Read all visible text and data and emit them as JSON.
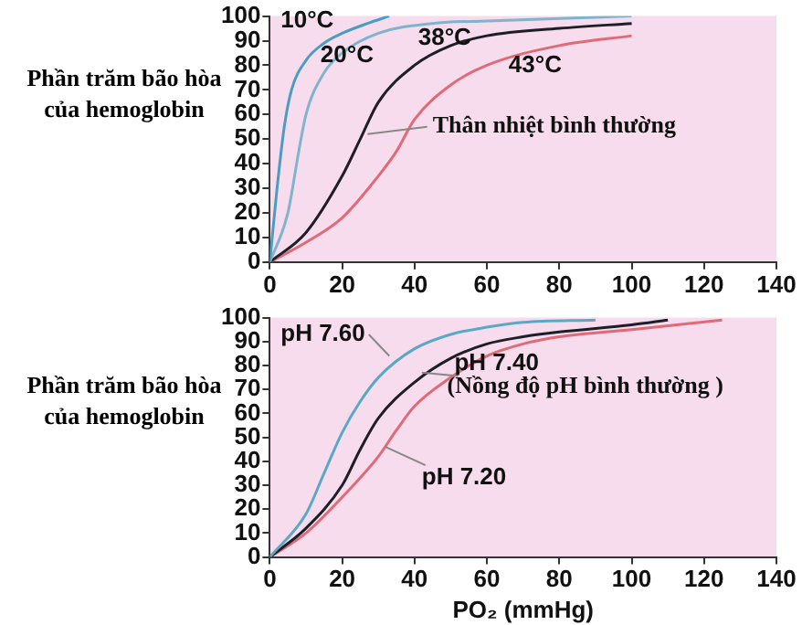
{
  "chart_data": [
    {
      "type": "line",
      "ylabel": "Phần trăm bão hòa của hemoglobin",
      "xlim": [
        0,
        140
      ],
      "xticks": [
        0,
        20,
        40,
        60,
        80,
        100,
        120,
        140
      ],
      "ylim": [
        0,
        100
      ],
      "yticks": [
        0,
        10,
        20,
        30,
        40,
        50,
        60,
        70,
        80,
        90,
        100
      ],
      "grid": false,
      "legend": false,
      "marker": "none",
      "line_style": "solid",
      "series": [
        {
          "name": "10°C",
          "color": "#4a9cc0",
          "x": [
            0,
            2,
            4,
            6,
            10,
            15,
            20,
            27,
            33
          ],
          "values": [
            0,
            30,
            55,
            70,
            82,
            89,
            93,
            97,
            100
          ]
        },
        {
          "name": "20°C",
          "color": "#7fb4cc",
          "x": [
            0,
            5,
            8,
            10,
            15,
            20,
            30,
            45,
            60,
            80,
            100
          ],
          "values": [
            0,
            20,
            45,
            60,
            77,
            85,
            93,
            97,
            98,
            99,
            100
          ]
        },
        {
          "name": "38°C",
          "color": "#1e1e28",
          "x": [
            0,
            10,
            20,
            25,
            30,
            40,
            50,
            60,
            80,
            100
          ],
          "values": [
            0,
            12,
            35,
            50,
            65,
            80,
            88,
            92,
            95,
            97
          ]
        },
        {
          "name": "43°C",
          "color": "#e06a78",
          "x": [
            0,
            10,
            20,
            30,
            35,
            40,
            50,
            60,
            80,
            100
          ],
          "values": [
            0,
            8,
            18,
            35,
            45,
            58,
            72,
            80,
            88,
            92
          ]
        }
      ],
      "annotations": [
        {
          "text": "Thân nhiệt bình thường",
          "x": 27,
          "y": 52
        }
      ]
    },
    {
      "type": "line",
      "ylabel": "Phần trăm bão hòa của hemoglobin",
      "xlabel": "PO₂ (mmHg)",
      "xlim": [
        0,
        140
      ],
      "xticks": [
        0,
        20,
        40,
        60,
        80,
        100,
        120,
        140
      ],
      "ylim": [
        0,
        100
      ],
      "yticks": [
        0,
        10,
        20,
        30,
        40,
        50,
        60,
        70,
        80,
        90,
        100
      ],
      "grid": false,
      "legend": false,
      "marker": "none",
      "line_style": "solid",
      "series": [
        {
          "name": "pH 7.60",
          "color": "#5aa8c4",
          "x": [
            0,
            10,
            15,
            20,
            25,
            30,
            40,
            50,
            60,
            70,
            90
          ],
          "values": [
            0,
            18,
            35,
            52,
            65,
            75,
            87,
            93,
            96,
            98,
            99
          ]
        },
        {
          "name": "pH 7.40",
          "color": "#1e1e28",
          "x": [
            0,
            10,
            20,
            25,
            30,
            40,
            50,
            60,
            70,
            80,
            100,
            110
          ],
          "values": [
            0,
            12,
            30,
            45,
            58,
            73,
            83,
            89,
            92,
            94,
            97,
            99
          ]
        },
        {
          "name": "pH 7.20",
          "color": "#e06a78",
          "x": [
            0,
            10,
            20,
            30,
            35,
            40,
            50,
            60,
            70,
            80,
            100,
            125
          ],
          "values": [
            0,
            10,
            25,
            42,
            53,
            63,
            75,
            84,
            89,
            92,
            95,
            99
          ]
        }
      ],
      "annotations": [
        "(Nồng độ pH bình thường )"
      ]
    }
  ]
}
